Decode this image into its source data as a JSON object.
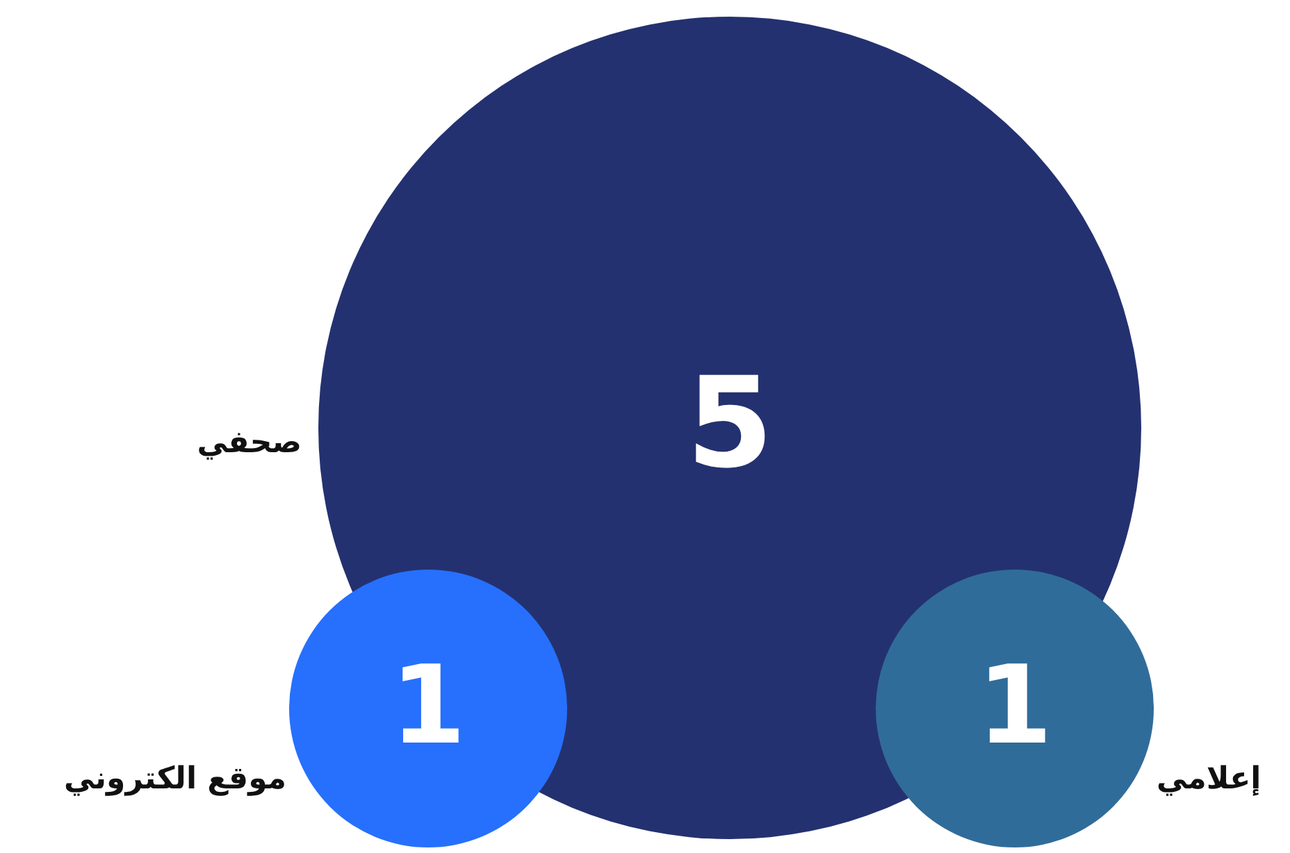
{
  "chart_data": {
    "type": "other",
    "categories": [
      "صحفي",
      "موقع الكتروني",
      "إعلامي"
    ],
    "values": [
      5,
      1,
      1
    ],
    "colors": [
      "#243170",
      "#2670fd",
      "#306c9a"
    ],
    "data_labels": true
  }
}
